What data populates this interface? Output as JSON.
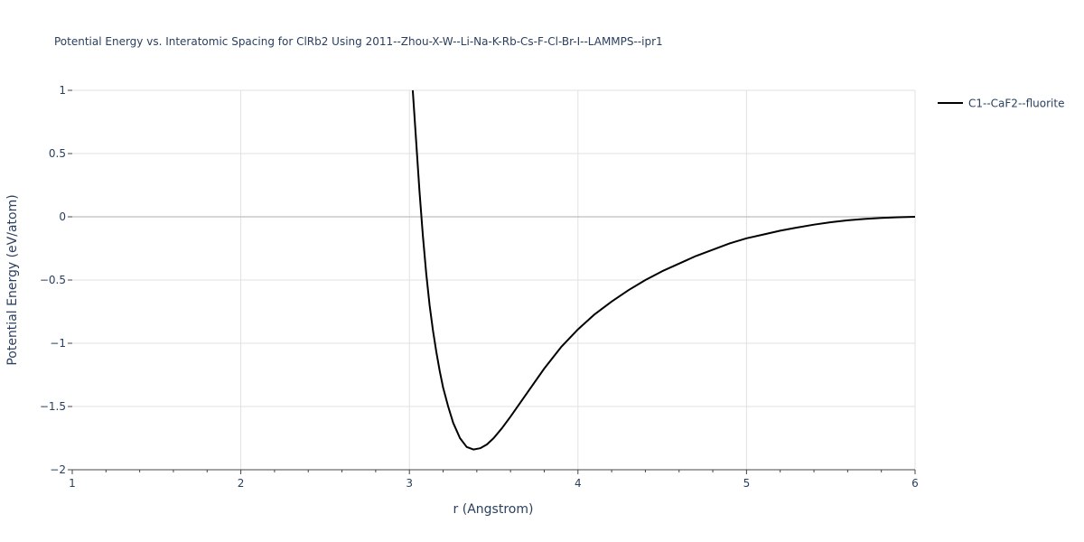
{
  "chart_data": {
    "type": "line",
    "title": "Potential Energy vs. Interatomic Spacing for ClRb2 Using 2011--Zhou-X-W--Li-Na-K-Rb-Cs-F-Cl-Br-I--LAMMPS--ipr1",
    "xlabel": "r (Angstrom)",
    "ylabel": "Potential Energy (eV/atom)",
    "xlim": [
      1,
      6
    ],
    "ylim": [
      -2,
      1
    ],
    "xticks": [
      1,
      2,
      3,
      4,
      5,
      6
    ],
    "xtick_labels": [
      "1",
      "2",
      "3",
      "4",
      "5",
      "6"
    ],
    "yticks": [
      1,
      0.5,
      0,
      -0.5,
      -1,
      -1.5,
      -2
    ],
    "ytick_labels": [
      "1",
      "0.5",
      "0",
      "−0.5",
      "−1",
      "−1.5",
      "−2"
    ],
    "grid": true,
    "legend_position": "top-right",
    "series": [
      {
        "name": "C1--CaF2--fluorite",
        "color": "#000000",
        "x": [
          3.02,
          3.04,
          3.06,
          3.08,
          3.1,
          3.12,
          3.14,
          3.16,
          3.18,
          3.2,
          3.23,
          3.26,
          3.3,
          3.34,
          3.38,
          3.42,
          3.46,
          3.5,
          3.55,
          3.6,
          3.7,
          3.8,
          3.9,
          4.0,
          4.1,
          4.2,
          4.3,
          4.4,
          4.5,
          4.6,
          4.7,
          4.8,
          4.9,
          5.0,
          5.1,
          5.2,
          5.3,
          5.4,
          5.5,
          5.6,
          5.7,
          5.8,
          5.9,
          6.0
        ],
        "y": [
          1.0,
          0.6,
          0.2,
          -0.15,
          -0.45,
          -0.7,
          -0.9,
          -1.07,
          -1.22,
          -1.35,
          -1.5,
          -1.63,
          -1.75,
          -1.82,
          -1.84,
          -1.83,
          -1.8,
          -1.75,
          -1.67,
          -1.58,
          -1.39,
          -1.2,
          -1.03,
          -0.89,
          -0.77,
          -0.67,
          -0.58,
          -0.5,
          -0.43,
          -0.37,
          -0.31,
          -0.26,
          -0.21,
          -0.17,
          -0.14,
          -0.11,
          -0.085,
          -0.062,
          -0.043,
          -0.028,
          -0.017,
          -0.009,
          -0.004,
          0.0
        ]
      }
    ]
  }
}
